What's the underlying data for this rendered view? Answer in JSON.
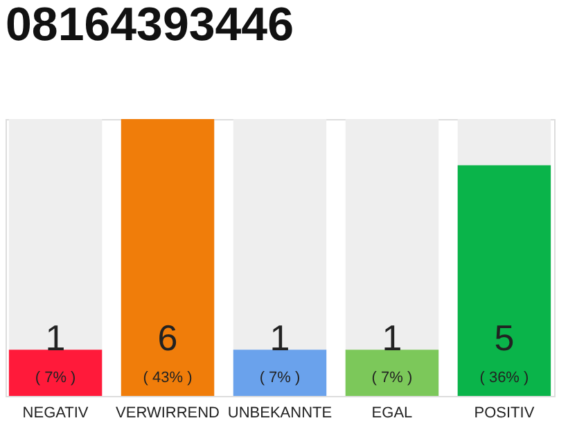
{
  "chart_data": {
    "type": "bar",
    "title": "08164393446",
    "categories": [
      "NEGATIV",
      "VERWIRREND",
      "UNBEKANNTE",
      "EGAL",
      "POSITIV"
    ],
    "values": [
      1,
      6,
      1,
      1,
      5
    ],
    "colors": [
      "#ff1a3a",
      "#f07d0a",
      "#6aa2ec",
      "#7cc85a",
      "#0ab44a"
    ],
    "ylim": [
      0,
      6
    ],
    "tick_labels": "x",
    "grid": false,
    "data_labels": true,
    "annotations": [
      "( 7% )",
      "( 43% )",
      "( 7% )",
      "( 7% )",
      "( 36% )"
    ]
  }
}
